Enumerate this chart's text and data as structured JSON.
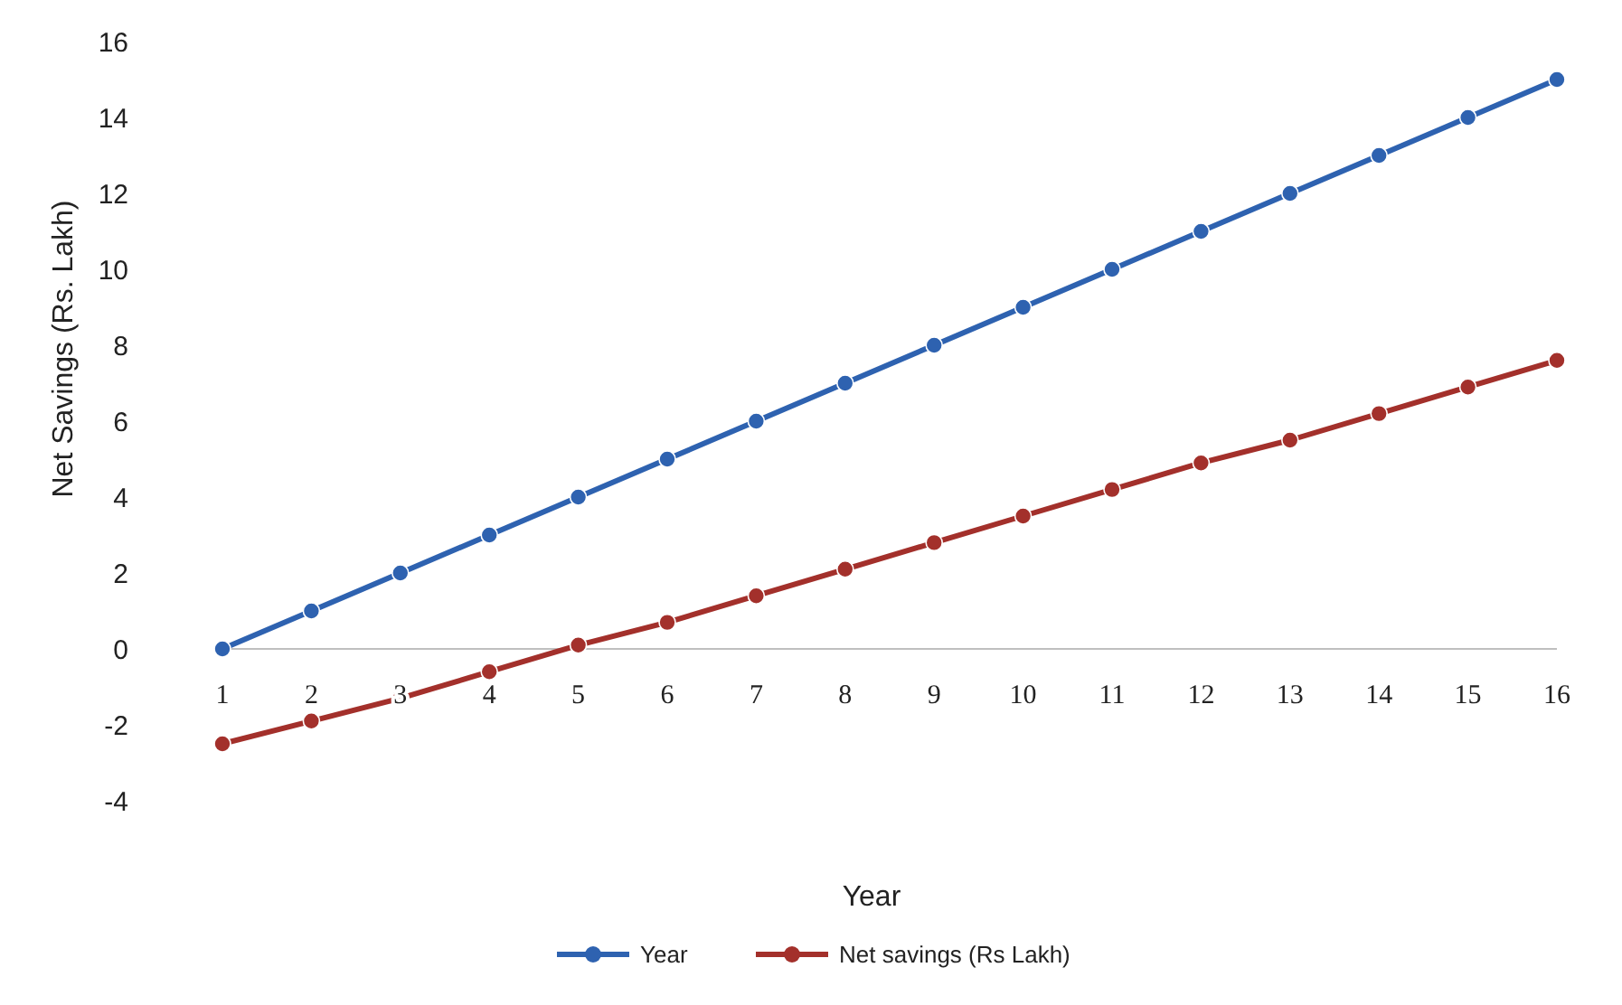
{
  "chart_data": {
    "type": "line",
    "xlabel": "Year",
    "ylabel": "Net Savings (Rs. Lakh)",
    "categories": [
      "1",
      "2",
      "3",
      "4",
      "5",
      "6",
      "7",
      "8",
      "9",
      "10",
      "11",
      "12",
      "13",
      "14",
      "15",
      "16"
    ],
    "series": [
      {
        "name": "Year",
        "color": "#2e62b0",
        "values": [
          0,
          1,
          2,
          3,
          4,
          5,
          6,
          7,
          8,
          9,
          10,
          11,
          12,
          13,
          14,
          15
        ]
      },
      {
        "name": "Net savings (Rs Lakh)",
        "color": "#a3302b",
        "values": [
          -2.5,
          -1.9,
          -1.3,
          -0.6,
          0.1,
          0.7,
          1.4,
          2.1,
          2.8,
          3.5,
          4.2,
          4.9,
          5.5,
          6.2,
          6.9,
          7.6
        ]
      }
    ],
    "ylim": [
      -4,
      16
    ],
    "yticks": [
      -4,
      -2,
      0,
      2,
      4,
      6,
      8,
      10,
      12,
      14,
      16
    ],
    "grid": false,
    "legend": "bottom",
    "marker": "circle",
    "line_style": "solid"
  }
}
